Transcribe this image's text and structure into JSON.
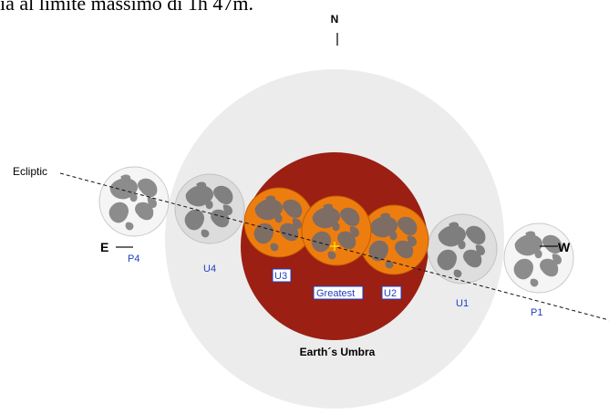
{
  "caption": "ia al limite massimo di 1h 47m.",
  "labels": {
    "north": "N",
    "ecliptic": "Ecliptic",
    "east": "E",
    "west": "W",
    "umbra": "Earth´s Umbra"
  },
  "contacts": [
    {
      "id": "P4",
      "label": "P4",
      "shadow": "none"
    },
    {
      "id": "U4",
      "label": "U4",
      "shadow": "penumbra"
    },
    {
      "id": "U3",
      "label": "U3",
      "shadow": "umbra"
    },
    {
      "id": "Greatest",
      "label": "Greatest",
      "shadow": "umbra"
    },
    {
      "id": "U2",
      "label": "U2",
      "shadow": "umbra"
    },
    {
      "id": "U1",
      "label": "U1",
      "shadow": "penumbra"
    },
    {
      "id": "P1",
      "label": "P1",
      "shadow": "none"
    }
  ],
  "colors": {
    "penumbra": "#ececec",
    "umbra": "#9b1f13",
    "moon_in_umbra": "#ee7d0f",
    "moon_in_umbra_maria": "#7d6d64",
    "moon_light": "#f5f5f5",
    "moon_maria": "#8c8c8c",
    "contact_label": "#1f3fbf",
    "ecliptic_line": "#111111",
    "greatest_marker": "#ffe000"
  }
}
